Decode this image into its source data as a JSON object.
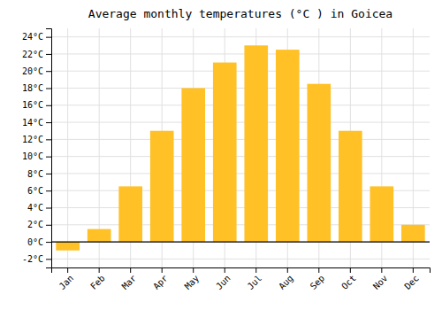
{
  "chart_data": {
    "type": "bar",
    "title": "Average monthly temperatures (°C ) in Goicea",
    "categories": [
      "Jan",
      "Feb",
      "Mar",
      "Apr",
      "May",
      "Jun",
      "Jul",
      "Aug",
      "Sep",
      "Oct",
      "Nov",
      "Dec"
    ],
    "values": [
      -1.0,
      1.5,
      6.5,
      13.0,
      18.0,
      21.0,
      23.0,
      22.5,
      18.5,
      13.0,
      6.5,
      2.0
    ],
    "color": "#FFC125",
    "ylim": [
      -3,
      25
    ],
    "yticks": [
      {
        "value": -2,
        "label": "-2°C"
      },
      {
        "value": 0,
        "label": "0°C"
      },
      {
        "value": 2,
        "label": "2°C"
      },
      {
        "value": 4,
        "label": "4°C"
      },
      {
        "value": 6,
        "label": "6°C"
      },
      {
        "value": 8,
        "label": "8°C"
      },
      {
        "value": 10,
        "label": "10°C"
      },
      {
        "value": 12,
        "label": "12°C"
      },
      {
        "value": 14,
        "label": "14°C"
      },
      {
        "value": 16,
        "label": "16°C"
      },
      {
        "value": 18,
        "label": "18°C"
      },
      {
        "value": 20,
        "label": "20°C"
      },
      {
        "value": 22,
        "label": "22°C"
      },
      {
        "value": 24,
        "label": "24°C"
      }
    ],
    "grid": true
  }
}
